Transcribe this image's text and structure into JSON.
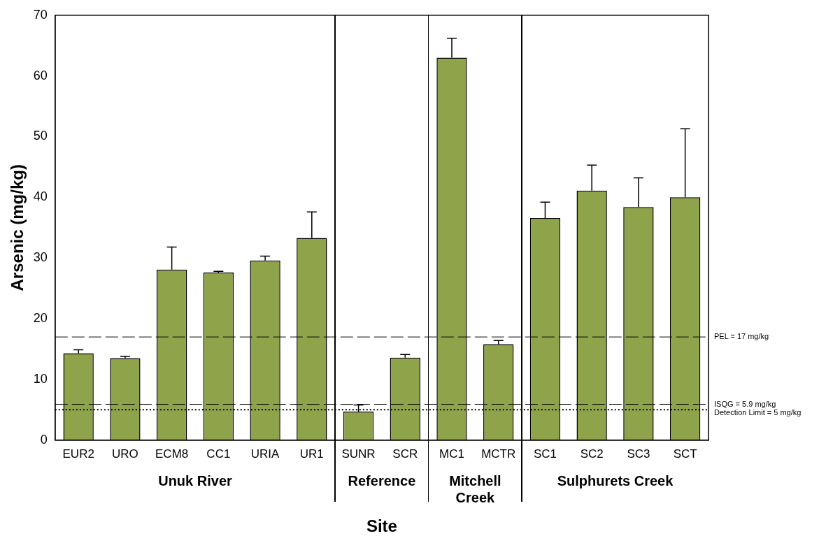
{
  "chart_data": {
    "type": "bar",
    "xlabel": "Site",
    "ylabel": "Arsenic (mg/kg)",
    "categories": [
      "EUR2",
      "URO",
      "ECM8",
      "CC1",
      "URIA",
      "UR1",
      "SUNR",
      "SCR",
      "MC1",
      "MCTR",
      "SC1",
      "SC2",
      "SC3",
      "SCT"
    ],
    "values": [
      14.3,
      13.5,
      28.1,
      27.6,
      29.6,
      33.3,
      4.7,
      13.6,
      63,
      15.8,
      36.6,
      41.1,
      38.4,
      40
    ],
    "errors": [
      [
        14.3,
        14.9
      ],
      [
        13.5,
        13.8
      ],
      [
        28.1,
        31.8
      ],
      [
        27.6,
        27.8
      ],
      [
        29.6,
        30.3
      ],
      [
        33.3,
        37.6
      ],
      [
        4.7,
        5.8
      ],
      [
        13.6,
        14.1
      ],
      [
        63,
        66.2
      ],
      [
        15.8,
        16.4
      ],
      [
        36.6,
        39.2
      ],
      [
        41.1,
        45.3
      ],
      [
        38.4,
        43.2
      ],
      [
        40,
        51.3
      ]
    ],
    "color": "#8fa34b",
    "ylim": [
      0,
      70
    ],
    "yticks": [
      0,
      10,
      20,
      30,
      40,
      50,
      60,
      70
    ],
    "grid": false,
    "legend": false,
    "ref_lines": [
      {
        "axis": "y",
        "value": 17,
        "label": "PEL = 17 mg/kg",
        "line_style": "dashed",
        "color": "#000000"
      },
      {
        "axis": "y",
        "value": 5.9,
        "label": "ISQG = 5.9 mg/kg",
        "line_style": "dashed",
        "color": "#000000"
      },
      {
        "axis": "y",
        "value": 5,
        "label": "Detection Limit = 5 mg/kg",
        "line_style": "dotted",
        "color": "#000000"
      }
    ],
    "annotations": [
      "Unuk River",
      "Reference",
      "Mitchell\nCreek",
      "Sulphurets Creek"
    ]
  }
}
